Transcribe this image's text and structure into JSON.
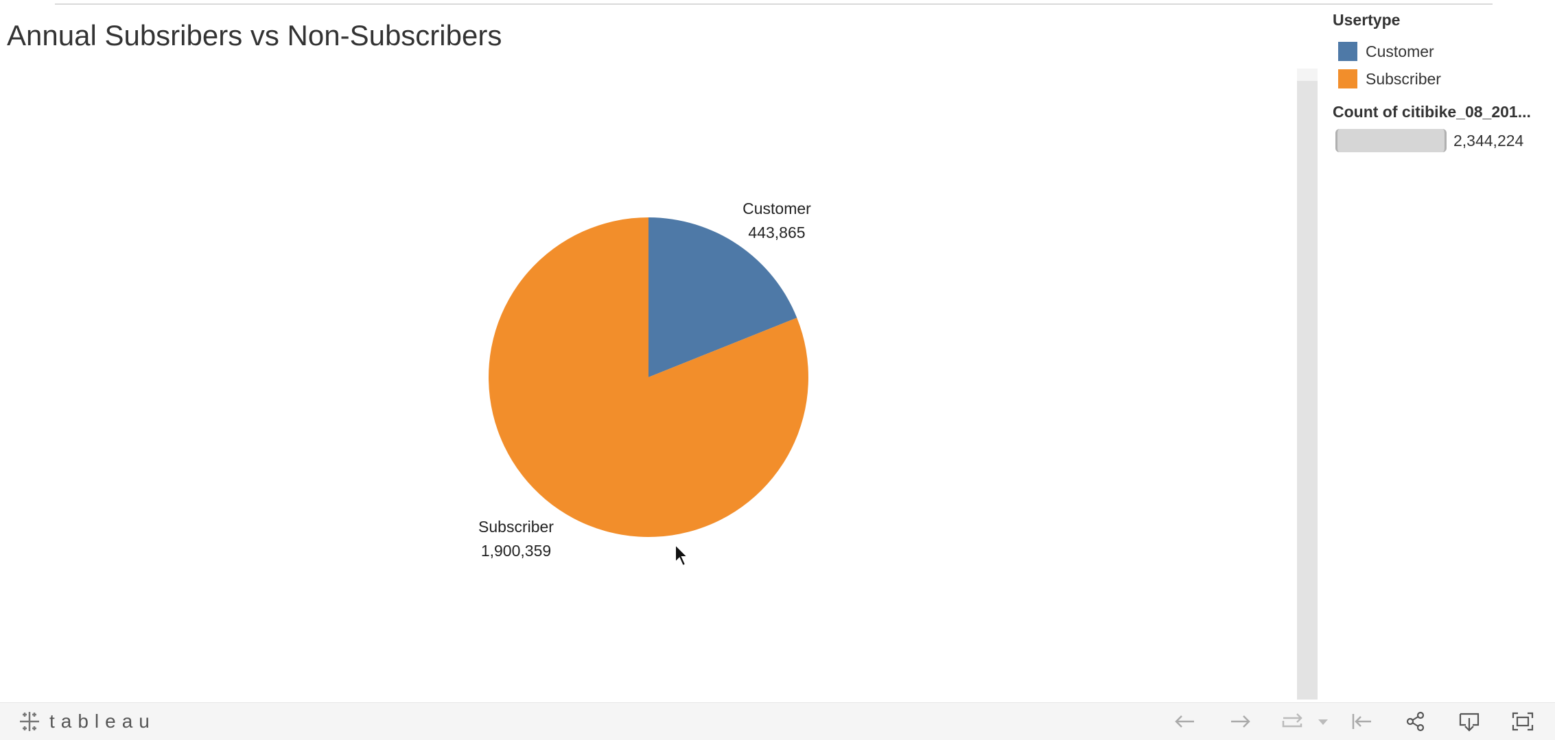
{
  "title": "Annual Subsribers vs Non-Subscribers",
  "legend": {
    "title": "Usertype",
    "items": [
      {
        "label": "Customer",
        "color": "#4e79a7"
      },
      {
        "label": "Subscriber",
        "color": "#f28e2b"
      }
    ]
  },
  "size_legend": {
    "title": "Count of citibike_08_201...",
    "value": "2,344,224"
  },
  "chart_data": {
    "type": "pie",
    "title": "Annual Subsribers vs Non-Subscribers",
    "legend_title": "Usertype",
    "legend_position": "top-right",
    "slices": [
      {
        "label": "Customer",
        "value": 443865,
        "value_label": "443,865",
        "color": "#4e79a7"
      },
      {
        "label": "Subscriber",
        "value": 1900359,
        "value_label": "1,900,359",
        "color": "#f28e2b"
      }
    ],
    "total": 2344224
  },
  "toolbar": {
    "brand": "tableau",
    "icons": [
      "undo-icon",
      "redo-icon",
      "revert-icon",
      "dropdown-icon",
      "reset-icon",
      "share-icon",
      "download-icon",
      "fullscreen-icon"
    ]
  }
}
